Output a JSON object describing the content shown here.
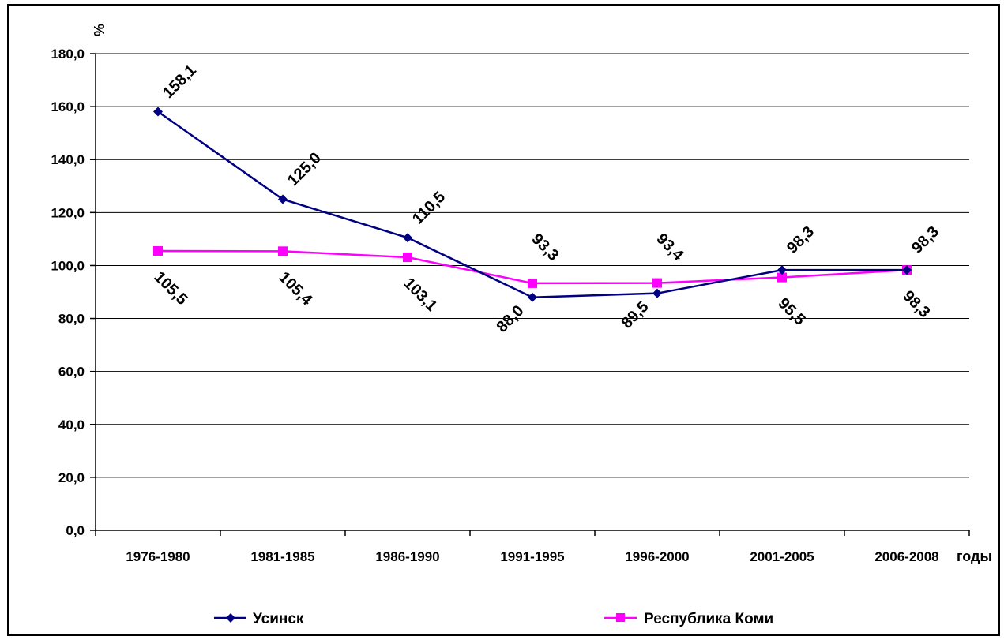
{
  "chart_data": {
    "type": "line",
    "ylabel": "%",
    "xlabel": "годы",
    "ylim": [
      0,
      180
    ],
    "ytick_step": 20,
    "grid": true,
    "legend_position": "bottom",
    "categories": [
      "1976-1980",
      "1981-1985",
      "1986-1990",
      "1991-1995",
      "1996-2000",
      "2001-2005",
      "2006-2008"
    ],
    "series": [
      {
        "name": "Усинск",
        "color": "#000080",
        "marker": "diamond",
        "values": [
          158.1,
          125.0,
          110.5,
          88.0,
          89.5,
          98.3,
          98.3
        ],
        "labels": [
          "158,1",
          "125,0",
          "110,5",
          "88,0",
          "89,5",
          "98,3",
          "98,3"
        ]
      },
      {
        "name": "Республика Коми",
        "color": "#ff00ff",
        "marker": "square",
        "values": [
          105.5,
          105.4,
          103.1,
          93.3,
          93.4,
          95.5,
          98.3
        ],
        "labels": [
          "105,5",
          "105,4",
          "103,1",
          "93,3",
          "93,4",
          "95,5",
          "98,3"
        ]
      }
    ],
    "ytick_labels": [
      "0,0",
      "20,0",
      "40,0",
      "60,0",
      "80,0",
      "100,0",
      "120,0",
      "140,0",
      "160,0",
      "180,0"
    ]
  }
}
